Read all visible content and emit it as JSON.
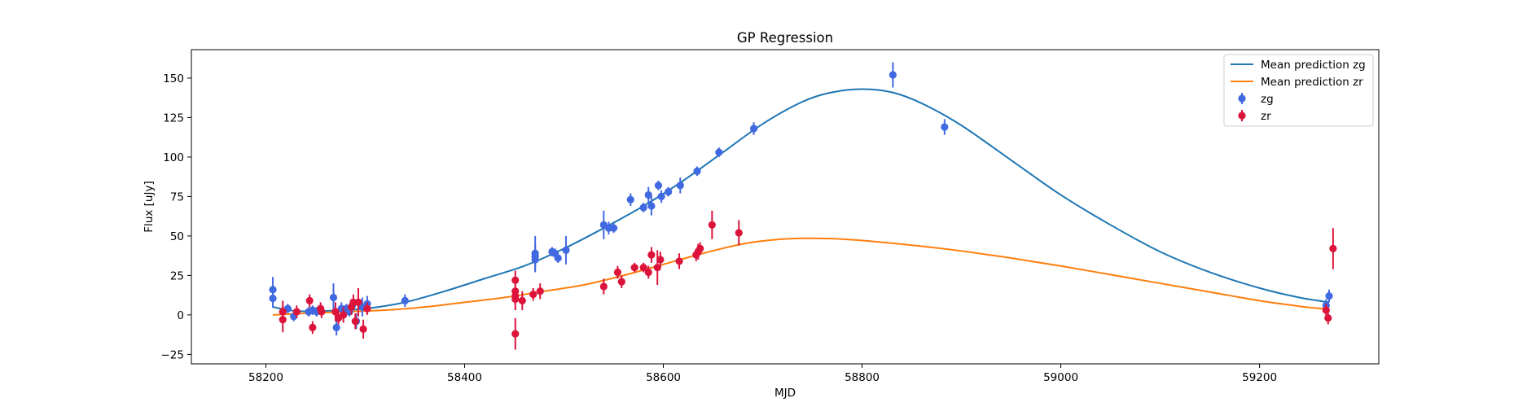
{
  "chart_data": {
    "type": "scatter",
    "title": "GP Regression",
    "xlabel": "MJD",
    "ylabel": "Flux [uJy]",
    "xlim": [
      58125,
      59320
    ],
    "ylim": [
      -31,
      168
    ],
    "x_ticks": [
      58200,
      58400,
      58600,
      58800,
      59000,
      59200
    ],
    "y_ticks": [
      -25,
      0,
      25,
      50,
      75,
      100,
      125,
      150
    ],
    "grid": false,
    "legend_position": "top-right",
    "colors": {
      "zg_line": "#1f77b4",
      "zr_line": "#ff7f0e",
      "zg_points": "#4169e1",
      "zr_points": "#dc143c"
    },
    "legend": [
      "Mean prediction zg",
      "Mean prediction zr",
      "zg",
      "zr"
    ],
    "series": [
      {
        "name": "Mean prediction zg",
        "kind": "line",
        "color": "#1f77b4",
        "x": [
          58207,
          58230,
          58260,
          58300,
          58340,
          58380,
          58420,
          58460,
          58500,
          58540,
          58580,
          58620,
          58660,
          58700,
          58740,
          58770,
          58800,
          58830,
          58860,
          58900,
          58950,
          59000,
          59050,
          59100,
          59150,
          59200,
          59240,
          59270
        ],
        "y": [
          5,
          2.5,
          2.5,
          4,
          8,
          15,
          23,
          31,
          42,
          55,
          69,
          85,
          103,
          121,
          135,
          141,
          143,
          141,
          134,
          120,
          98,
          76,
          57,
          40,
          27,
          17,
          11,
          8
        ]
      },
      {
        "name": "Mean prediction zr",
        "kind": "line",
        "color": "#ff7f0e",
        "x": [
          58207,
          58240,
          58280,
          58320,
          58360,
          58400,
          58440,
          58480,
          58520,
          58560,
          58600,
          58640,
          58680,
          58710,
          58740,
          58780,
          58820,
          58860,
          58900,
          58950,
          59000,
          59050,
          59100,
          59150,
          59200,
          59240,
          59270
        ],
        "y": [
          0,
          1,
          2,
          3,
          5,
          8,
          11,
          15,
          19,
          25,
          32,
          39,
          45,
          47.5,
          48.5,
          48,
          46,
          43.5,
          40.5,
          36,
          31,
          25.5,
          20,
          14.5,
          9,
          5.5,
          3.5
        ]
      },
      {
        "name": "zg",
        "kind": "errorbar",
        "color": "#4169e1",
        "points": [
          [
            58207,
            16,
            8
          ],
          [
            58207,
            10.5,
            6
          ],
          [
            58222,
            4,
            3
          ],
          [
            58228,
            -1,
            3
          ],
          [
            58243,
            2,
            3
          ],
          [
            58247,
            3,
            3
          ],
          [
            58251,
            2,
            3
          ],
          [
            58255,
            3,
            3
          ],
          [
            58268,
            11,
            9
          ],
          [
            58271,
            -8,
            5
          ],
          [
            58276,
            4,
            4
          ],
          [
            58281,
            4,
            3
          ],
          [
            58284,
            2,
            3
          ],
          [
            58287,
            6,
            4
          ],
          [
            58291,
            -4,
            5
          ],
          [
            58297,
            5,
            6
          ],
          [
            58302,
            7,
            5
          ],
          [
            58340,
            9,
            4
          ],
          [
            58471,
            39,
            11
          ],
          [
            58471,
            37,
            8
          ],
          [
            58471,
            35,
            8
          ],
          [
            58488,
            40,
            3
          ],
          [
            58491,
            39,
            3
          ],
          [
            58494,
            36,
            3
          ],
          [
            58502,
            41,
            9
          ],
          [
            58540,
            57,
            9
          ],
          [
            58545,
            55,
            4
          ],
          [
            58550,
            55,
            3
          ],
          [
            58567,
            73,
            4
          ],
          [
            58580,
            68,
            3
          ],
          [
            58585,
            76,
            5
          ],
          [
            58588,
            69,
            6
          ],
          [
            58595,
            82,
            3
          ],
          [
            58598,
            75,
            4
          ],
          [
            58605,
            78,
            3
          ],
          [
            58617,
            82,
            5
          ],
          [
            58634,
            91,
            3
          ],
          [
            58656,
            103,
            3
          ],
          [
            58691,
            118,
            4
          ],
          [
            58831,
            152,
            8
          ],
          [
            58883,
            119,
            5
          ],
          [
            59267,
            6,
            4
          ],
          [
            59270,
            12,
            4
          ]
        ]
      },
      {
        "name": "zr",
        "kind": "errorbar",
        "color": "#dc143c",
        "points": [
          [
            58217,
            2,
            7
          ],
          [
            58217,
            -3,
            8
          ],
          [
            58231,
            2,
            4
          ],
          [
            58244,
            9,
            4
          ],
          [
            58247,
            -8,
            4
          ],
          [
            58255,
            4,
            4
          ],
          [
            58256,
            2,
            4
          ],
          [
            58270,
            2,
            6
          ],
          [
            58273,
            -2,
            4
          ],
          [
            58278,
            0,
            5
          ],
          [
            58286,
            5,
            5
          ],
          [
            58288,
            8,
            5
          ],
          [
            58290,
            -4,
            5
          ],
          [
            58293,
            8,
            9
          ],
          [
            58298,
            -9,
            6
          ],
          [
            58302,
            4,
            4
          ],
          [
            58451,
            22,
            6
          ],
          [
            58451,
            15,
            5
          ],
          [
            58451,
            12,
            5
          ],
          [
            58451,
            10,
            7
          ],
          [
            58451,
            -12,
            10
          ],
          [
            58458,
            9,
            6
          ],
          [
            58469,
            13,
            4
          ],
          [
            58476,
            15,
            5
          ],
          [
            58540,
            18,
            5
          ],
          [
            58554,
            27,
            4
          ],
          [
            58558,
            21,
            4
          ],
          [
            58571,
            30,
            3
          ],
          [
            58580,
            30,
            3
          ],
          [
            58585,
            27,
            4
          ],
          [
            58588,
            38,
            5
          ],
          [
            58594,
            30,
            11
          ],
          [
            58597,
            35,
            5
          ],
          [
            58616,
            34,
            5
          ],
          [
            58633,
            38,
            4
          ],
          [
            58635,
            40,
            5
          ],
          [
            58637,
            42,
            4
          ],
          [
            58649,
            57,
            9
          ],
          [
            58676,
            52,
            8
          ],
          [
            59267,
            3,
            4
          ],
          [
            59269,
            -2,
            4
          ],
          [
            59274,
            42,
            13
          ]
        ]
      }
    ]
  }
}
